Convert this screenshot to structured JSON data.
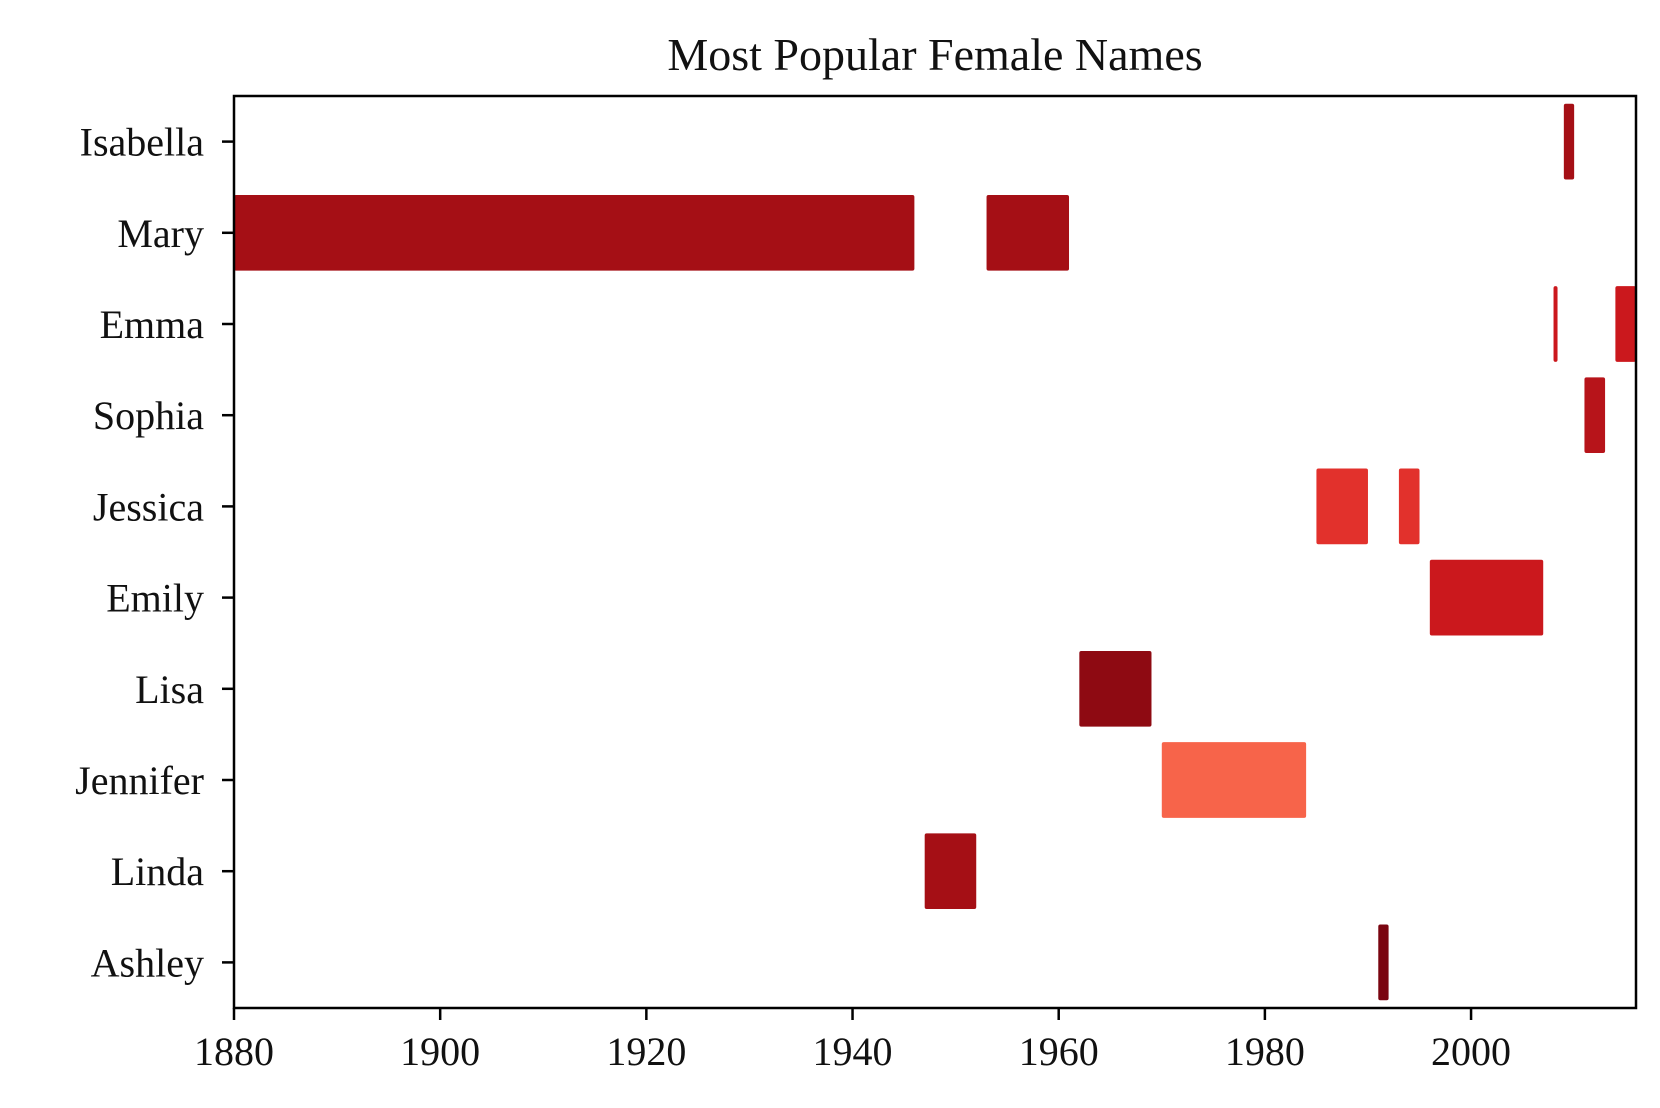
{
  "chart_data": {
    "type": "bar",
    "orientation": "horizontal-ranges",
    "title": "Most Popular Female Names",
    "xlabel": "",
    "ylabel": "",
    "xlim": [
      1880,
      2016
    ],
    "xticks": [
      "1880",
      "1900",
      "1920",
      "1940",
      "1960",
      "1980",
      "2000"
    ],
    "categories": [
      "Isabella",
      "Mary",
      "Emma",
      "Sophia",
      "Jessica",
      "Emily",
      "Lisa",
      "Jennifer",
      "Linda",
      "Ashley"
    ],
    "ranges": [
      {
        "name": "Isabella",
        "color": "#a50f15",
        "spans": [
          [
            2009,
            2010
          ]
        ]
      },
      {
        "name": "Mary",
        "color": "#a50f15",
        "spans": [
          [
            1880,
            1946
          ],
          [
            1953,
            1961
          ]
        ]
      },
      {
        "name": "Emma",
        "color": "#cb181d",
        "spans": [
          [
            2008,
            2008
          ],
          [
            2014,
            2016
          ]
        ]
      },
      {
        "name": "Sophia",
        "color": "#b7141a",
        "spans": [
          [
            2011,
            2013
          ]
        ]
      },
      {
        "name": "Jessica",
        "color": "#e2312c",
        "spans": [
          [
            1985,
            1990
          ],
          [
            1993,
            1995
          ]
        ]
      },
      {
        "name": "Emily",
        "color": "#cb181d",
        "spans": [
          [
            1996,
            2007
          ]
        ]
      },
      {
        "name": "Lisa",
        "color": "#8e0a12",
        "spans": [
          [
            1962,
            1969
          ]
        ]
      },
      {
        "name": "Jennifer",
        "color": "#f7644a",
        "spans": [
          [
            1970,
            1984
          ]
        ]
      },
      {
        "name": "Linda",
        "color": "#a50f15",
        "spans": [
          [
            1947,
            1952
          ]
        ]
      },
      {
        "name": "Ashley",
        "color": "#7a0510",
        "spans": [
          [
            1991,
            1992
          ]
        ]
      }
    ],
    "grid": false,
    "legend": "none"
  }
}
